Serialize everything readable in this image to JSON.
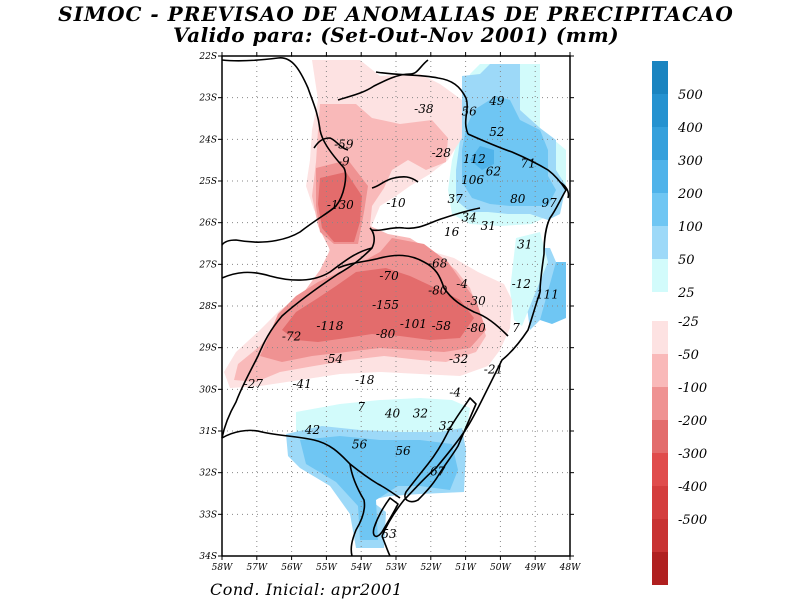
{
  "title": {
    "line1": "SIMOC - PREVISAO DE ANOMALIAS DE PRECIPITACAO",
    "line2": "Valido para: (Set-Out-Nov 2001) (mm)"
  },
  "footer": "Cond. Inicial: apr2001",
  "axes": {
    "lat_labels": [
      "22S",
      "23S",
      "24S",
      "25S",
      "26S",
      "27S",
      "28S",
      "29S",
      "30S",
      "31S",
      "32S",
      "33S",
      "34S"
    ],
    "lon_labels": [
      "58W",
      "57W",
      "56W",
      "55W",
      "54W",
      "53W",
      "52W",
      "51W",
      "50W",
      "49W",
      "48W"
    ],
    "lat_range": [
      -34,
      -22
    ],
    "lon_range": [
      -58,
      -48
    ]
  },
  "legend": {
    "positive": [
      {
        "label": "500",
        "color": "#1a84c0"
      },
      {
        "label": "400",
        "color": "#2592d0"
      },
      {
        "label": "300",
        "color": "#35a0dc"
      },
      {
        "label": "200",
        "color": "#4fb3ea"
      },
      {
        "label": "100",
        "color": "#6fc6f3"
      },
      {
        "label": "50",
        "color": "#9dd9f8"
      },
      {
        "label": "25",
        "color": "#d2fbfb"
      }
    ],
    "negative": [
      {
        "label": "-25",
        "color": "#fde2e2"
      },
      {
        "label": "-50",
        "color": "#f9b9b9"
      },
      {
        "label": "-100",
        "color": "#ef9292"
      },
      {
        "label": "-200",
        "color": "#e36c6c"
      },
      {
        "label": "-300",
        "color": "#e04c4c"
      },
      {
        "label": "-400",
        "color": "#d43d3d"
      },
      {
        "label": "-500",
        "color": "#c83232"
      },
      {
        "label": "",
        "color": "#b02020"
      }
    ]
  },
  "contour_labels": [
    {
      "text": "-38",
      "lon": -52.2,
      "lat": -23.3
    },
    {
      "text": "56",
      "lon": -50.9,
      "lat": -23.35
    },
    {
      "text": "49",
      "lon": -50.1,
      "lat": -23.1
    },
    {
      "text": "52",
      "lon": -50.1,
      "lat": -23.85
    },
    {
      "text": "-59",
      "lon": -54.5,
      "lat": -24.15
    },
    {
      "text": "-9",
      "lon": -54.5,
      "lat": -24.55
    },
    {
      "text": "-28",
      "lon": -51.7,
      "lat": -24.35
    },
    {
      "text": "112",
      "lon": -50.75,
      "lat": -24.5
    },
    {
      "text": "71",
      "lon": -49.2,
      "lat": -24.6
    },
    {
      "text": "62",
      "lon": -50.2,
      "lat": -24.8
    },
    {
      "text": "106",
      "lon": -50.8,
      "lat": -25.0
    },
    {
      "text": "37",
      "lon": -51.3,
      "lat": -25.45
    },
    {
      "text": "80",
      "lon": -49.5,
      "lat": -25.45
    },
    {
      "text": "97",
      "lon": -48.6,
      "lat": -25.55
    },
    {
      "text": "-130",
      "lon": -54.6,
      "lat": -25.6
    },
    {
      "text": "-10",
      "lon": -53.0,
      "lat": -25.55
    },
    {
      "text": "34",
      "lon": -50.9,
      "lat": -25.9
    },
    {
      "text": "31",
      "lon": -50.35,
      "lat": -26.1
    },
    {
      "text": "16",
      "lon": -51.4,
      "lat": -26.25
    },
    {
      "text": "31",
      "lon": -49.3,
      "lat": -26.55
    },
    {
      "text": "-68",
      "lon": -51.8,
      "lat": -27.0
    },
    {
      "text": "-70",
      "lon": -53.2,
      "lat": -27.3
    },
    {
      "text": "-4",
      "lon": -51.1,
      "lat": -27.5
    },
    {
      "text": "-12",
      "lon": -49.4,
      "lat": -27.5
    },
    {
      "text": "-80",
      "lon": -51.8,
      "lat": -27.65
    },
    {
      "text": "111",
      "lon": -48.65,
      "lat": -27.75
    },
    {
      "text": "-30",
      "lon": -50.7,
      "lat": -27.9
    },
    {
      "text": "-155",
      "lon": -53.3,
      "lat": -28.0
    },
    {
      "text": "-118",
      "lon": -54.9,
      "lat": -28.5
    },
    {
      "text": "-101",
      "lon": -52.5,
      "lat": -28.45
    },
    {
      "text": "-58",
      "lon": -51.7,
      "lat": -28.5
    },
    {
      "text": "-80",
      "lon": -50.7,
      "lat": -28.55
    },
    {
      "text": "7",
      "lon": -49.55,
      "lat": -28.55
    },
    {
      "text": "-72",
      "lon": -56.0,
      "lat": -28.75
    },
    {
      "text": "-80",
      "lon": -53.3,
      "lat": -28.7
    },
    {
      "text": "-54",
      "lon": -54.8,
      "lat": -29.3
    },
    {
      "text": "-32",
      "lon": -51.2,
      "lat": -29.3
    },
    {
      "text": "-21",
      "lon": -50.2,
      "lat": -29.55
    },
    {
      "text": "-41",
      "lon": -55.7,
      "lat": -29.9
    },
    {
      "text": "-18",
      "lon": -53.9,
      "lat": -29.8
    },
    {
      "text": "-27",
      "lon": -57.1,
      "lat": -29.9
    },
    {
      "text": "-4",
      "lon": -51.3,
      "lat": -30.1
    },
    {
      "text": "7",
      "lon": -54.0,
      "lat": -30.45
    },
    {
      "text": "40",
      "lon": -53.1,
      "lat": -30.6
    },
    {
      "text": "32",
      "lon": -52.3,
      "lat": -30.6
    },
    {
      "text": "32",
      "lon": -51.55,
      "lat": -30.9
    },
    {
      "text": "42",
      "lon": -55.4,
      "lat": -31.0
    },
    {
      "text": "56",
      "lon": -54.05,
      "lat": -31.35
    },
    {
      "text": "56",
      "lon": -52.8,
      "lat": -31.5
    },
    {
      "text": "67",
      "lon": -51.8,
      "lat": -32.0
    },
    {
      "text": "53",
      "lon": -53.2,
      "lat": -33.5
    }
  ]
}
